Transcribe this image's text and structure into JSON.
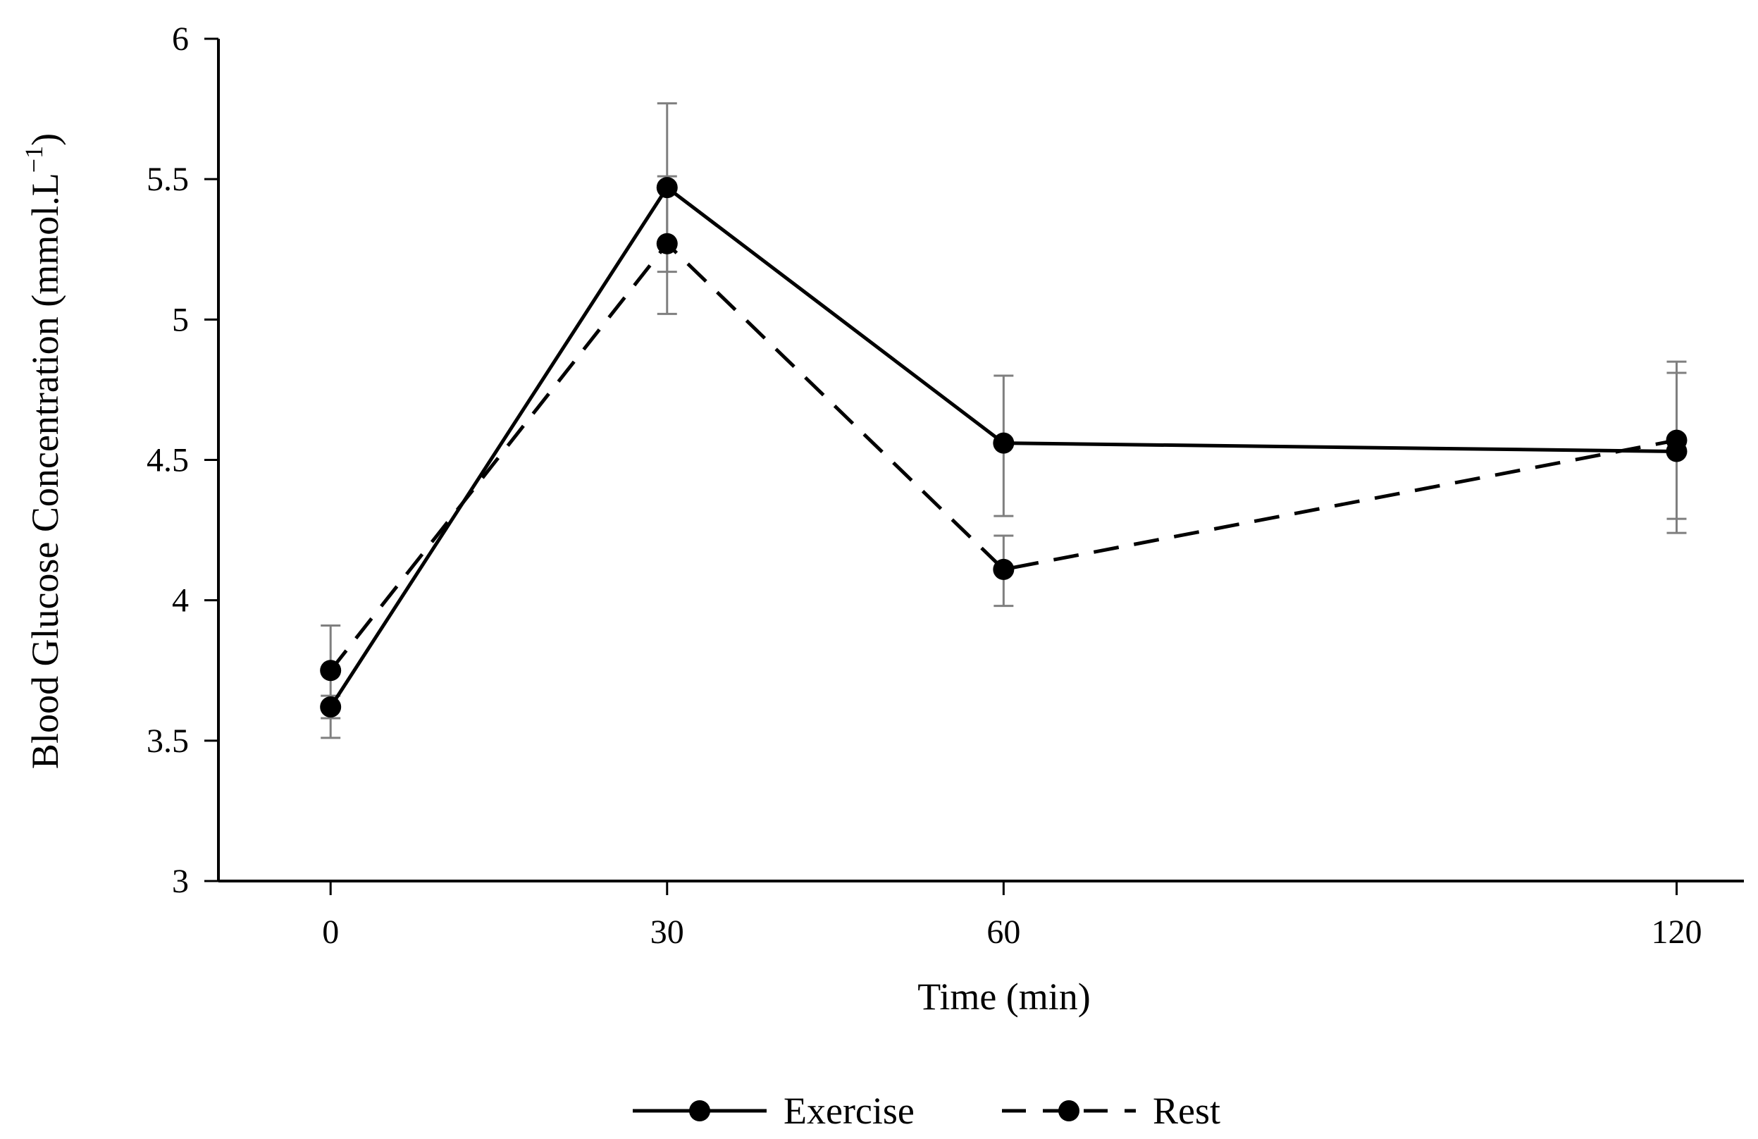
{
  "chart_data": {
    "type": "line",
    "title": "",
    "xlabel": "Time (min)",
    "ylabel_main": "Blood Glucose Concentration (mmol.L",
    "ylabel_sup": "−1",
    "ylabel_close": ")",
    "x": [
      0,
      30,
      60,
      120
    ],
    "x_tick_labels": [
      "0",
      "30",
      "60",
      "120"
    ],
    "xlim": [
      -10,
      126
    ],
    "ylim": [
      3,
      6
    ],
    "y_ticks": [
      3,
      3.5,
      4,
      4.5,
      5,
      5.5,
      6
    ],
    "y_tick_labels": [
      "3",
      "3.5",
      "4",
      "4.5",
      "5",
      "5.5",
      "6"
    ],
    "grid": false,
    "legend_position": "bottom-center",
    "series": [
      {
        "name": "Exercise",
        "line_style": "solid",
        "values": [
          3.62,
          5.47,
          4.56,
          4.53
        ],
        "error_low": [
          3.58,
          5.17,
          4.3,
          4.24
        ],
        "error_high": [
          3.66,
          5.77,
          4.8,
          4.81
        ]
      },
      {
        "name": "Rest",
        "line_style": "dashed",
        "values": [
          3.75,
          5.27,
          4.11,
          4.57
        ],
        "error_low": [
          3.51,
          5.02,
          3.98,
          4.29
        ],
        "error_high": [
          3.91,
          5.51,
          4.23,
          4.85
        ]
      }
    ],
    "colors": {
      "line": "#000000",
      "error_bar": "#7f7f7f",
      "axis": "#000000"
    }
  }
}
